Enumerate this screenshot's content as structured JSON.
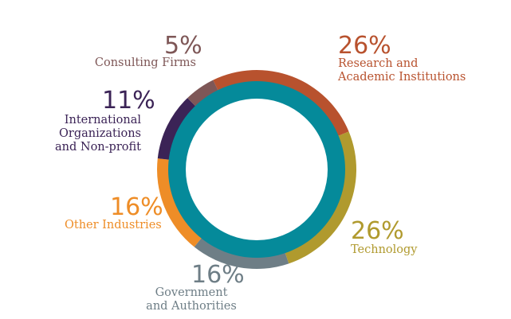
{
  "chart_data": {
    "type": "pie",
    "style": "donut",
    "legend": "none",
    "slices": [
      {
        "label": "Research and\nAcademic Institutions",
        "value": 26,
        "text": "26%",
        "color": "#b8522e"
      },
      {
        "label": "Technology",
        "value": 26,
        "text": "26%",
        "color": "#b09a2e"
      },
      {
        "label": "Government\nand Authorities",
        "value": 16,
        "text": "16%",
        "color": "#6e7e86"
      },
      {
        "label": "Other Industries",
        "value": 16,
        "text": "16%",
        "color": "#ee8d27"
      },
      {
        "label": "International\nOrganizations\nand Non-profit",
        "value": 11,
        "text": "11%",
        "color": "#3b2356"
      },
      {
        "label": "Consulting Firms",
        "value": 5,
        "text": "5%",
        "color": "#7e5757"
      }
    ],
    "inner_ring_color": "#058a9a"
  }
}
